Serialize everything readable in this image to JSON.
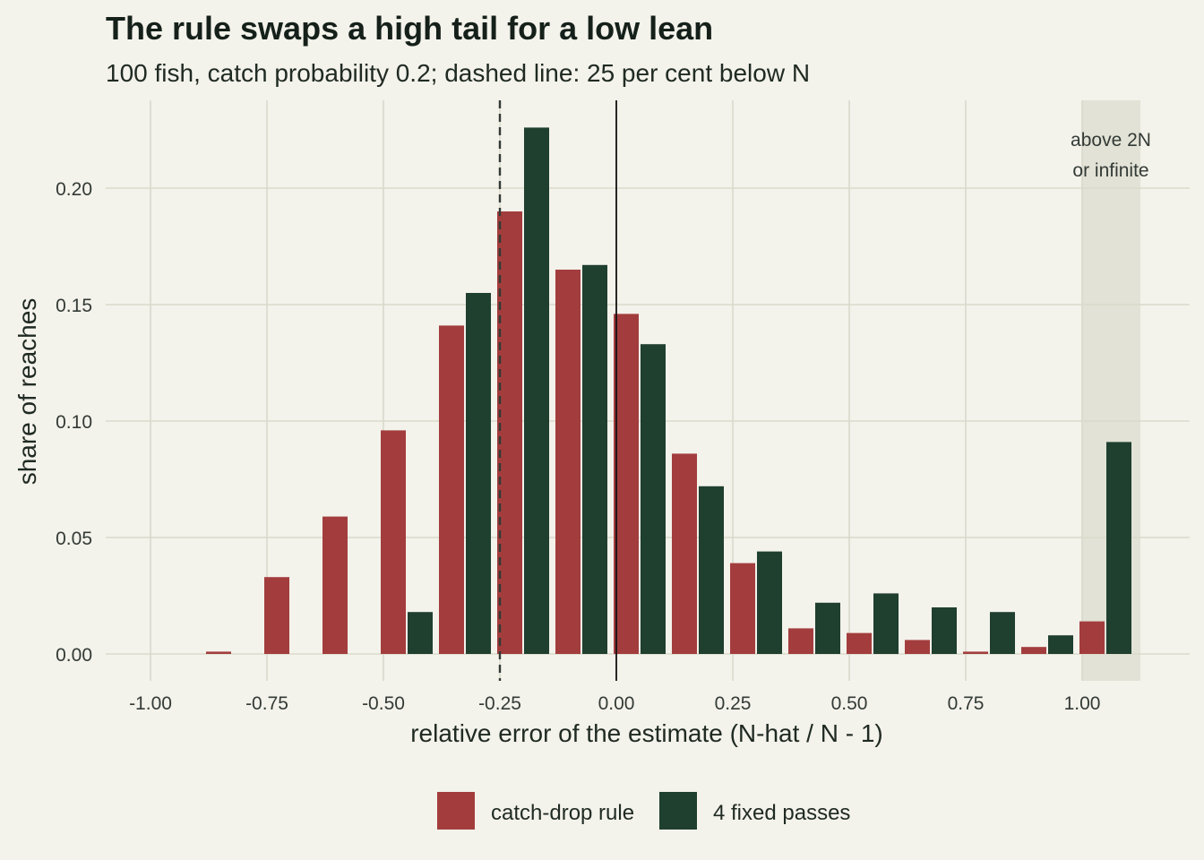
{
  "chart_data": {
    "type": "bar",
    "title": "The rule swaps a high tail for a low lean",
    "subtitle": "100 fish, catch probability 0.2; dashed line: 25 per cent below N",
    "xlabel": "relative error of the estimate (N-hat / N - 1)",
    "ylabel": "share of reaches",
    "xlim": [
      -1.0,
      1.1
    ],
    "ylim": [
      0,
      0.225
    ],
    "x_ticks": [
      "-1.00",
      "-0.75",
      "-0.50",
      "-0.25",
      "0.00",
      "0.25",
      "0.50",
      "0.75",
      "1.00"
    ],
    "y_ticks": [
      "0.00",
      "0.05",
      "0.10",
      "0.15",
      "0.20"
    ],
    "bin_centers": [
      -0.825,
      -0.7,
      -0.575,
      -0.45,
      -0.325,
      -0.2,
      -0.075,
      0.05,
      0.175,
      0.3,
      0.425,
      0.55,
      0.675,
      0.8,
      0.925,
      1.05
    ],
    "series": [
      {
        "name": "catch-drop rule",
        "color": "#a33d3d",
        "values": [
          0.001,
          0.033,
          0.059,
          0.096,
          0.141,
          0.19,
          0.165,
          0.146,
          0.086,
          0.039,
          0.011,
          0.009,
          0.006,
          0.001,
          0.003,
          0.014
        ]
      },
      {
        "name": "4 fixed passes",
        "color": "#1f3f2f",
        "values": [
          0,
          0,
          0,
          0.018,
          0.155,
          0.226,
          0.167,
          0.133,
          0.072,
          0.044,
          0.022,
          0.026,
          0.02,
          0.018,
          0.008,
          0.091
        ]
      }
    ],
    "reference_lines": [
      {
        "x": -0.25,
        "style": "dashed"
      },
      {
        "x": 0.0,
        "style": "solid"
      }
    ],
    "shaded_region": {
      "x_start": 1.0,
      "x_end": 1.125,
      "label_lines": [
        "above 2N",
        "or infinite"
      ]
    },
    "legend_position": "bottom",
    "grid": true
  }
}
